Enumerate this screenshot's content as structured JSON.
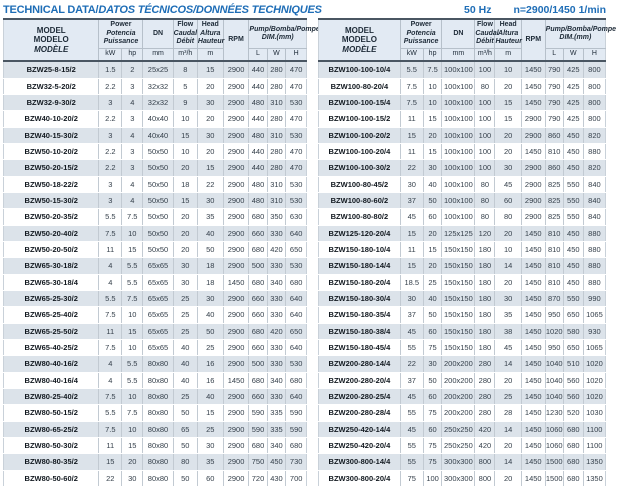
{
  "header": {
    "title_main": "TECHNICAL DATA/",
    "title_intl": "DATOS TÉCNICOS/DONNÉES TECHNIQUES",
    "frequency": "50 Hz",
    "speed": "n=2900/1450 1/min"
  },
  "colors": {
    "accent_blue": "#1e6db6",
    "header_bg": "#e2eaf3",
    "row_shade": "#dce3ea",
    "dark_border": "#4a5662"
  },
  "columns": {
    "model": [
      "MODEL",
      "MODELO",
      "MODÈLE"
    ],
    "power": [
      "Power",
      "Potencia",
      "Puissance"
    ],
    "dn_label": "DN",
    "flow": [
      "Flow",
      "Caudal",
      "Débit"
    ],
    "head": [
      "Head",
      "Altura",
      "Hauteur"
    ],
    "rpm_label": "RPM",
    "dim": [
      "Pump/Bomba/Pompe",
      "DIM.(mm)"
    ],
    "units": [
      "kW",
      "hp",
      "mm",
      "m³/h",
      "m",
      "L",
      "W",
      "H"
    ]
  },
  "tables": [
    {
      "id": "left",
      "rows": [
        [
          "BZW25-8-15/2",
          "1.5",
          "2",
          "25x25",
          "8",
          "15",
          "2900",
          "440",
          "280",
          "470"
        ],
        [
          "BZW32-5-20/2",
          "2.2",
          "3",
          "32x32",
          "5",
          "20",
          "2900",
          "440",
          "280",
          "470"
        ],
        [
          "BZW32-9-30/2",
          "3",
          "4",
          "32x32",
          "9",
          "30",
          "2900",
          "480",
          "310",
          "530"
        ],
        [
          "BZW40-10-20/2",
          "2.2",
          "3",
          "40x40",
          "10",
          "20",
          "2900",
          "440",
          "280",
          "470"
        ],
        [
          "BZW40-15-30/2",
          "3",
          "4",
          "40x40",
          "15",
          "30",
          "2900",
          "480",
          "310",
          "530"
        ],
        [
          "BZW50-10-20/2",
          "2.2",
          "3",
          "50x50",
          "10",
          "20",
          "2900",
          "440",
          "280",
          "470"
        ],
        [
          "BZW50-20-15/2",
          "2.2",
          "3",
          "50x50",
          "20",
          "15",
          "2900",
          "440",
          "280",
          "470"
        ],
        [
          "BZW50-18-22/2",
          "3",
          "4",
          "50x50",
          "18",
          "22",
          "2900",
          "480",
          "310",
          "530"
        ],
        [
          "BZW50-15-30/2",
          "3",
          "4",
          "50x50",
          "15",
          "30",
          "2900",
          "480",
          "310",
          "530"
        ],
        [
          "BZW50-20-35/2",
          "5.5",
          "7.5",
          "50x50",
          "20",
          "35",
          "2900",
          "680",
          "350",
          "630"
        ],
        [
          "BZW50-20-40/2",
          "7.5",
          "10",
          "50x50",
          "20",
          "40",
          "2900",
          "660",
          "330",
          "640"
        ],
        [
          "BZW50-20-50/2",
          "11",
          "15",
          "50x50",
          "20",
          "50",
          "2900",
          "680",
          "420",
          "650"
        ],
        [
          "BZW65-30-18/2",
          "4",
          "5.5",
          "65x65",
          "30",
          "18",
          "2900",
          "500",
          "330",
          "530"
        ],
        [
          "BZW65-30-18/4",
          "4",
          "5.5",
          "65x65",
          "30",
          "18",
          "1450",
          "680",
          "340",
          "680"
        ],
        [
          "BZW65-25-30/2",
          "5.5",
          "7.5",
          "65x65",
          "25",
          "30",
          "2900",
          "660",
          "330",
          "640"
        ],
        [
          "BZW65-25-40/2",
          "7.5",
          "10",
          "65x65",
          "25",
          "40",
          "2900",
          "660",
          "330",
          "640"
        ],
        [
          "BZW65-25-50/2",
          "11",
          "15",
          "65x65",
          "25",
          "50",
          "2900",
          "680",
          "420",
          "650"
        ],
        [
          "BZW65-40-25/2",
          "7.5",
          "10",
          "65x65",
          "40",
          "25",
          "2900",
          "660",
          "330",
          "640"
        ],
        [
          "BZW80-40-16/2",
          "4",
          "5.5",
          "80x80",
          "40",
          "16",
          "2900",
          "500",
          "330",
          "530"
        ],
        [
          "BZW80-40-16/4",
          "4",
          "5.5",
          "80x80",
          "40",
          "16",
          "1450",
          "680",
          "340",
          "680"
        ],
        [
          "BZW80-25-40/2",
          "7.5",
          "10",
          "80x80",
          "25",
          "40",
          "2900",
          "660",
          "330",
          "640"
        ],
        [
          "BZW80-50-15/2",
          "5.5",
          "7.5",
          "80x80",
          "50",
          "15",
          "2900",
          "590",
          "335",
          "590"
        ],
        [
          "BZW80-65-25/2",
          "7.5",
          "10",
          "80x80",
          "65",
          "25",
          "2900",
          "590",
          "335",
          "590"
        ],
        [
          "BZW80-50-30/2",
          "11",
          "15",
          "80x80",
          "50",
          "30",
          "2900",
          "680",
          "340",
          "680"
        ],
        [
          "BZW80-80-35/2",
          "15",
          "20",
          "80x80",
          "80",
          "35",
          "2900",
          "750",
          "450",
          "730"
        ],
        [
          "BZW80-50-60/2",
          "22",
          "30",
          "80x80",
          "50",
          "60",
          "2900",
          "720",
          "430",
          "700"
        ]
      ]
    },
    {
      "id": "right",
      "rows": [
        [
          "BZW100-100-10/4",
          "5.5",
          "7.5",
          "100x100",
          "100",
          "10",
          "1450",
          "790",
          "425",
          "800"
        ],
        [
          "BZW100-80-20/4",
          "7.5",
          "10",
          "100x100",
          "80",
          "20",
          "1450",
          "790",
          "425",
          "800"
        ],
        [
          "BZW100-100-15/4",
          "7.5",
          "10",
          "100x100",
          "100",
          "15",
          "1450",
          "790",
          "425",
          "800"
        ],
        [
          "BZW100-100-15/2",
          "11",
          "15",
          "100x100",
          "100",
          "15",
          "2900",
          "790",
          "425",
          "800"
        ],
        [
          "BZW100-100-20/2",
          "15",
          "20",
          "100x100",
          "100",
          "20",
          "2900",
          "860",
          "450",
          "820"
        ],
        [
          "BZW100-100-20/4",
          "11",
          "15",
          "100x100",
          "100",
          "20",
          "1450",
          "810",
          "450",
          "880"
        ],
        [
          "BZW100-100-30/2",
          "22",
          "30",
          "100x100",
          "100",
          "30",
          "2900",
          "860",
          "450",
          "820"
        ],
        [
          "BZW100-80-45/2",
          "30",
          "40",
          "100x100",
          "80",
          "45",
          "2900",
          "825",
          "550",
          "840"
        ],
        [
          "BZW100-80-60/2",
          "37",
          "50",
          "100x100",
          "80",
          "60",
          "2900",
          "825",
          "550",
          "840"
        ],
        [
          "BZW100-80-80/2",
          "45",
          "60",
          "100x100",
          "80",
          "80",
          "2900",
          "825",
          "550",
          "840"
        ],
        [
          "BZW125-120-20/4",
          "15",
          "20",
          "125x125",
          "120",
          "20",
          "1450",
          "810",
          "450",
          "880"
        ],
        [
          "BZW150-180-10/4",
          "11",
          "15",
          "150x150",
          "180",
          "10",
          "1450",
          "810",
          "450",
          "880"
        ],
        [
          "BZW150-180-14/4",
          "15",
          "20",
          "150x150",
          "180",
          "14",
          "1450",
          "810",
          "450",
          "880"
        ],
        [
          "BZW150-180-20/4",
          "18.5",
          "25",
          "150x150",
          "180",
          "20",
          "1450",
          "810",
          "450",
          "880"
        ],
        [
          "BZW150-180-30/4",
          "30",
          "40",
          "150x150",
          "180",
          "30",
          "1450",
          "870",
          "550",
          "990"
        ],
        [
          "BZW150-180-35/4",
          "37",
          "50",
          "150x150",
          "180",
          "35",
          "1450",
          "950",
          "650",
          "1065"
        ],
        [
          "BZW150-180-38/4",
          "45",
          "60",
          "150x150",
          "180",
          "38",
          "1450",
          "1020",
          "580",
          "930"
        ],
        [
          "BZW150-180-45/4",
          "55",
          "75",
          "150x150",
          "180",
          "45",
          "1450",
          "950",
          "650",
          "1065"
        ],
        [
          "BZW200-280-14/4",
          "22",
          "30",
          "200x200",
          "280",
          "14",
          "1450",
          "1040",
          "510",
          "1020"
        ],
        [
          "BZW200-280-20/4",
          "37",
          "50",
          "200x200",
          "280",
          "20",
          "1450",
          "1040",
          "560",
          "1020"
        ],
        [
          "BZW200-280-25/4",
          "45",
          "60",
          "200x200",
          "280",
          "25",
          "1450",
          "1040",
          "560",
          "1020"
        ],
        [
          "BZW200-280-28/4",
          "55",
          "75",
          "200x200",
          "280",
          "28",
          "1450",
          "1230",
          "520",
          "1030"
        ],
        [
          "BZW250-420-14/4",
          "45",
          "60",
          "250x250",
          "420",
          "14",
          "1450",
          "1060",
          "680",
          "1100"
        ],
        [
          "BZW250-420-20/4",
          "55",
          "75",
          "250x250",
          "420",
          "20",
          "1450",
          "1060",
          "680",
          "1100"
        ],
        [
          "BZW300-800-14/4",
          "55",
          "75",
          "300x300",
          "800",
          "14",
          "1450",
          "1500",
          "680",
          "1350"
        ],
        [
          "BZW300-800-20/4",
          "75",
          "100",
          "300x300",
          "800",
          "20",
          "1450",
          "1500",
          "680",
          "1350"
        ]
      ]
    }
  ]
}
